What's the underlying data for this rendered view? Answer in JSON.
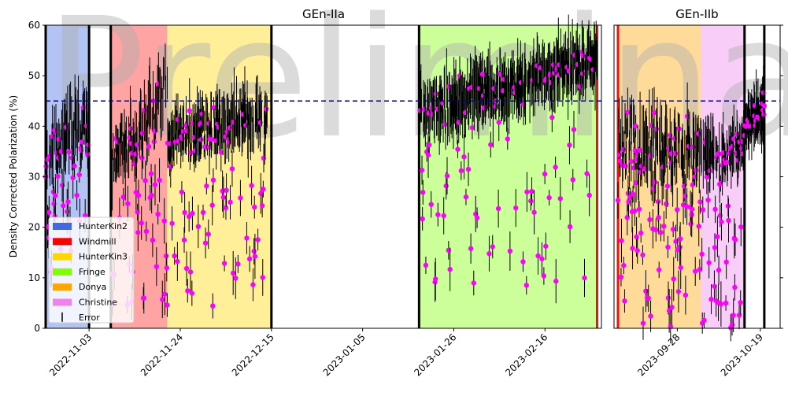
{
  "chart_data": {
    "type": "scatter",
    "watermark": "Preliminary",
    "ylabel": "Density Corrected Polarization (%)",
    "ylim": [
      0,
      60
    ],
    "yticks": [
      0,
      10,
      20,
      30,
      40,
      50,
      60
    ],
    "reference_line": {
      "y": 45,
      "color": "#000080",
      "style": "dashed"
    },
    "marker_color": "#ff00ff",
    "error_color": "#000000",
    "panels": [
      {
        "title": "GEn-IIa",
        "xlim": [
          "2022-10-24",
          "2023-03-01"
        ],
        "xticks": [
          "2022-11-03",
          "2022-11-24",
          "2022-12-15",
          "2023-01-05",
          "2023-01-26",
          "2023-02-16"
        ],
        "regions": [
          {
            "name": "HunterKin2",
            "start": "2022-10-24",
            "end": "2022-11-03",
            "color": "#4169e1"
          },
          {
            "name": "Windmill",
            "start": "2022-11-08",
            "end": "2022-11-21",
            "color": "#ff1a1a"
          },
          {
            "name": "HunterKin3",
            "start": "2022-11-21",
            "end": "2022-12-15",
            "color": "#ffd700"
          },
          {
            "name": "Fringe",
            "start": "2023-01-18",
            "end": "2023-02-28",
            "color": "#7fff00"
          }
        ],
        "boundaries": [
          {
            "date": "2022-10-24",
            "color": "#000000"
          },
          {
            "date": "2022-11-03",
            "color": "#000000"
          },
          {
            "date": "2022-11-08",
            "color": "#000000"
          },
          {
            "date": "2022-12-15",
            "color": "#000000"
          },
          {
            "date": "2023-01-18",
            "color": "#000000"
          },
          {
            "date": "2023-02-28",
            "color": "#ee1111"
          }
        ],
        "segments": [
          {
            "start": "2022-10-24",
            "end": "2022-11-03",
            "center": 38,
            "trend": 3,
            "noise": 6,
            "outliers": 0.25,
            "outlier_min": 10,
            "seed": 11
          },
          {
            "start": "2022-11-08",
            "end": "2022-11-21",
            "center": 40,
            "trend": 7,
            "noise": 5,
            "outliers": 0.3,
            "outlier_min": 2,
            "seed": 23
          },
          {
            "start": "2022-11-21",
            "end": "2022-12-14",
            "center": 40,
            "trend": 2,
            "noise": 4,
            "outliers": 0.3,
            "outlier_min": 3,
            "seed": 37
          },
          {
            "start": "2023-01-18",
            "end": "2023-02-28",
            "center": 48,
            "trend": 5,
            "noise": 4,
            "outliers": 0.2,
            "outlier_min": 8,
            "seed": 51
          }
        ]
      },
      {
        "title": "GEn-IIb",
        "xlim": [
          "2023-09-12",
          "2023-10-24"
        ],
        "xticks": [
          "2023-09-28",
          "2023-10-19"
        ],
        "regions": [
          {
            "name": "Donya",
            "start": "2023-09-13",
            "end": "2023-10-04",
            "color": "#ffa500"
          },
          {
            "name": "Christine",
            "start": "2023-10-04",
            "end": "2023-10-15",
            "color": "#ee82ee"
          }
        ],
        "boundaries": [
          {
            "date": "2023-09-13",
            "color": "#ee1111"
          },
          {
            "date": "2023-10-15",
            "color": "#000000"
          },
          {
            "date": "2023-10-20",
            "color": "#000000"
          }
        ],
        "segments": [
          {
            "start": "2023-09-13",
            "end": "2023-10-04",
            "center": 36,
            "trend": -1,
            "noise": 6,
            "outliers": 0.35,
            "outlier_min": 0,
            "seed": 71
          },
          {
            "start": "2023-10-04",
            "end": "2023-10-15",
            "center": 35,
            "trend": 0,
            "noise": 3,
            "outliers": 0.3,
            "outlier_min": 0,
            "seed": 83
          },
          {
            "start": "2023-10-15",
            "end": "2023-10-20",
            "center": 42,
            "trend": 2,
            "noise": 2,
            "outliers": 0.1,
            "outlier_min": 40,
            "seed": 97
          }
        ]
      }
    ],
    "legend": {
      "position": "lower-left",
      "entries": [
        {
          "label": "HunterKin2",
          "color": "#4169e1",
          "kind": "patch"
        },
        {
          "label": "Windmill",
          "color": "#ff0000",
          "kind": "patch"
        },
        {
          "label": "HunterKin3",
          "color": "#ffd700",
          "kind": "patch"
        },
        {
          "label": "Fringe",
          "color": "#7fff00",
          "kind": "patch"
        },
        {
          "label": "Donya",
          "color": "#ffa500",
          "kind": "patch"
        },
        {
          "label": "Christine",
          "color": "#ee82ee",
          "kind": "patch"
        },
        {
          "label": "Error",
          "color": "#000000",
          "kind": "errorbar"
        }
      ]
    }
  }
}
